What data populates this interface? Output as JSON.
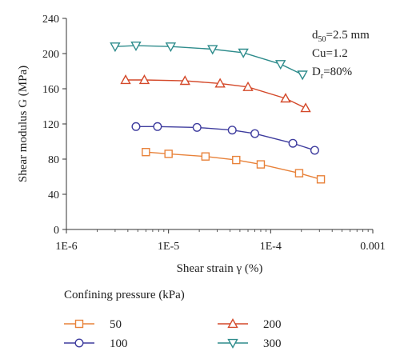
{
  "chart_data": {
    "type": "line",
    "xscale": "log",
    "xlim": [
      1e-06,
      0.001
    ],
    "ylim": [
      0,
      240
    ],
    "xticks": [
      1e-06,
      1e-05,
      0.0001,
      0.001
    ],
    "xtick_labels": [
      "1E-6",
      "1E-5",
      "1E-4",
      "0.001"
    ],
    "yticks": [
      0,
      40,
      80,
      120,
      160,
      200,
      240
    ],
    "ytick_labels": [
      "0",
      "40",
      "80",
      "120",
      "160",
      "200",
      "240"
    ],
    "xlabel": "Shear strain γ (%)",
    "ylabel": "Shear modulus G (MPa)",
    "grid": false,
    "annotations": [
      "d50=2.5 mm",
      "Cu=1.2",
      "Dr=80%"
    ],
    "legend_title": "Confining pressure (kPa)",
    "legend_position": "below",
    "series": [
      {
        "name": "50",
        "marker": "square",
        "color": "#E8823A",
        "x": [
          6e-06,
          1e-05,
          2.3e-05,
          4.6e-05,
          8e-05,
          0.00019,
          0.00031
        ],
        "y": [
          88,
          86,
          83,
          79,
          74,
          64,
          57
        ]
      },
      {
        "name": "100",
        "marker": "circle",
        "color": "#3E3C9E",
        "x": [
          4.8e-06,
          7.8e-06,
          1.9e-05,
          4.2e-05,
          7e-05,
          0.000165,
          0.00027
        ],
        "y": [
          117,
          117,
          116,
          113,
          109,
          98,
          90
        ]
      },
      {
        "name": "200",
        "marker": "triangle-up",
        "color": "#D4492A",
        "x": [
          3.8e-06,
          5.8e-06,
          1.45e-05,
          3.2e-05,
          6e-05,
          0.00014,
          0.00022
        ],
        "y": [
          170,
          170,
          169,
          166,
          162,
          149,
          138
        ]
      },
      {
        "name": "300",
        "marker": "triangle-down",
        "color": "#2E8C8C",
        "x": [
          3e-06,
          4.8e-06,
          1.05e-05,
          2.7e-05,
          5.4e-05,
          0.000125,
          0.000205
        ],
        "y": [
          208,
          209,
          208,
          205,
          201,
          188,
          176
        ]
      }
    ]
  }
}
